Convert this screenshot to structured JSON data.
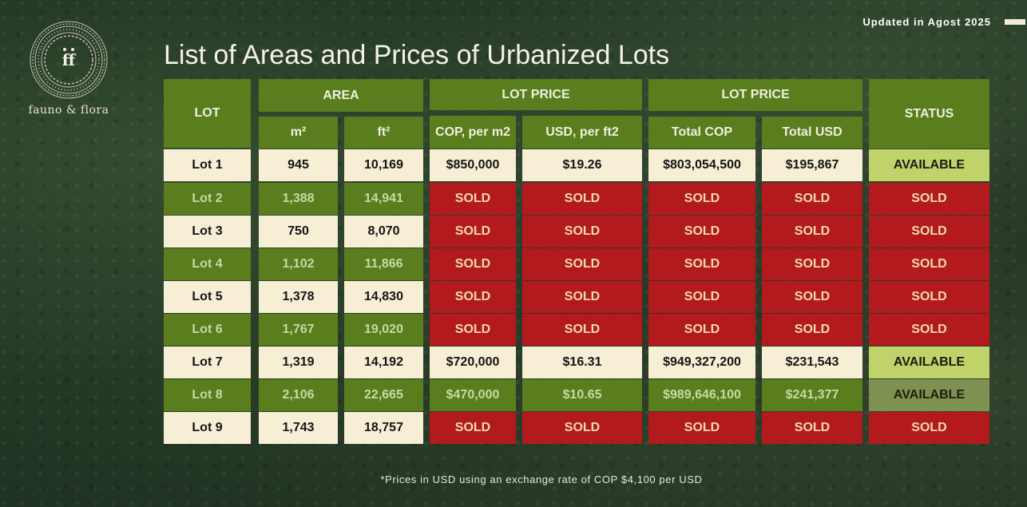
{
  "brand": {
    "name": "fauno & flora"
  },
  "updated": "Updated in Agost 2025",
  "title": "List of Areas and Prices of Urbanized Lots",
  "headers": {
    "lot": "LOT",
    "area": "AREA",
    "m2": "m²",
    "ft2": "ft²",
    "lot_price_1": "LOT PRICE",
    "cop_per_m2": "COP, per m2",
    "usd_per_ft2": "USD, per ft2",
    "lot_price_2": "LOT PRICE",
    "total_cop": "Total COP",
    "total_usd": "Total USD",
    "status": "STATUS"
  },
  "rows": [
    {
      "lot": "Lot 1",
      "m2": "945",
      "ft2": "10,169",
      "cop_m2": "$850,000",
      "usd_ft2": "$19.26",
      "total_cop": "$803,054,500",
      "total_usd": "$195,867",
      "status": "AVAILABLE"
    },
    {
      "lot": "Lot 2",
      "m2": "1,388",
      "ft2": "14,941",
      "cop_m2": "SOLD",
      "usd_ft2": "SOLD",
      "total_cop": "SOLD",
      "total_usd": "SOLD",
      "status": "SOLD"
    },
    {
      "lot": "Lot 3",
      "m2": "750",
      "ft2": "8,070",
      "cop_m2": "SOLD",
      "usd_ft2": "SOLD",
      "total_cop": "SOLD",
      "total_usd": "SOLD",
      "status": "SOLD"
    },
    {
      "lot": "Lot 4",
      "m2": "1,102",
      "ft2": "11,866",
      "cop_m2": "SOLD",
      "usd_ft2": "SOLD",
      "total_cop": "SOLD",
      "total_usd": "SOLD",
      "status": "SOLD"
    },
    {
      "lot": "Lot 5",
      "m2": "1,378",
      "ft2": "14,830",
      "cop_m2": "SOLD",
      "usd_ft2": "SOLD",
      "total_cop": "SOLD",
      "total_usd": "SOLD",
      "status": "SOLD"
    },
    {
      "lot": "Lot 6",
      "m2": "1,767",
      "ft2": "19,020",
      "cop_m2": "SOLD",
      "usd_ft2": "SOLD",
      "total_cop": "SOLD",
      "total_usd": "SOLD",
      "status": "SOLD"
    },
    {
      "lot": "Lot 7",
      "m2": "1,319",
      "ft2": "14,192",
      "cop_m2": "$720,000",
      "usd_ft2": "$16.31",
      "total_cop": "$949,327,200",
      "total_usd": "$231,543",
      "status": "AVAILABLE"
    },
    {
      "lot": "Lot 8",
      "m2": "2,106",
      "ft2": "22,665",
      "cop_m2": "$470,000",
      "usd_ft2": "$10.65",
      "total_cop": "$989,646,100",
      "total_usd": "$241,377",
      "status": "AVAILABLE"
    },
    {
      "lot": "Lot 9",
      "m2": "1,743",
      "ft2": "18,757",
      "cop_m2": "SOLD",
      "usd_ft2": "SOLD",
      "total_cop": "SOLD",
      "total_usd": "SOLD",
      "status": "SOLD"
    }
  ],
  "footnote": "*Prices in USD using an exchange rate of COP $4,100 per USD"
}
